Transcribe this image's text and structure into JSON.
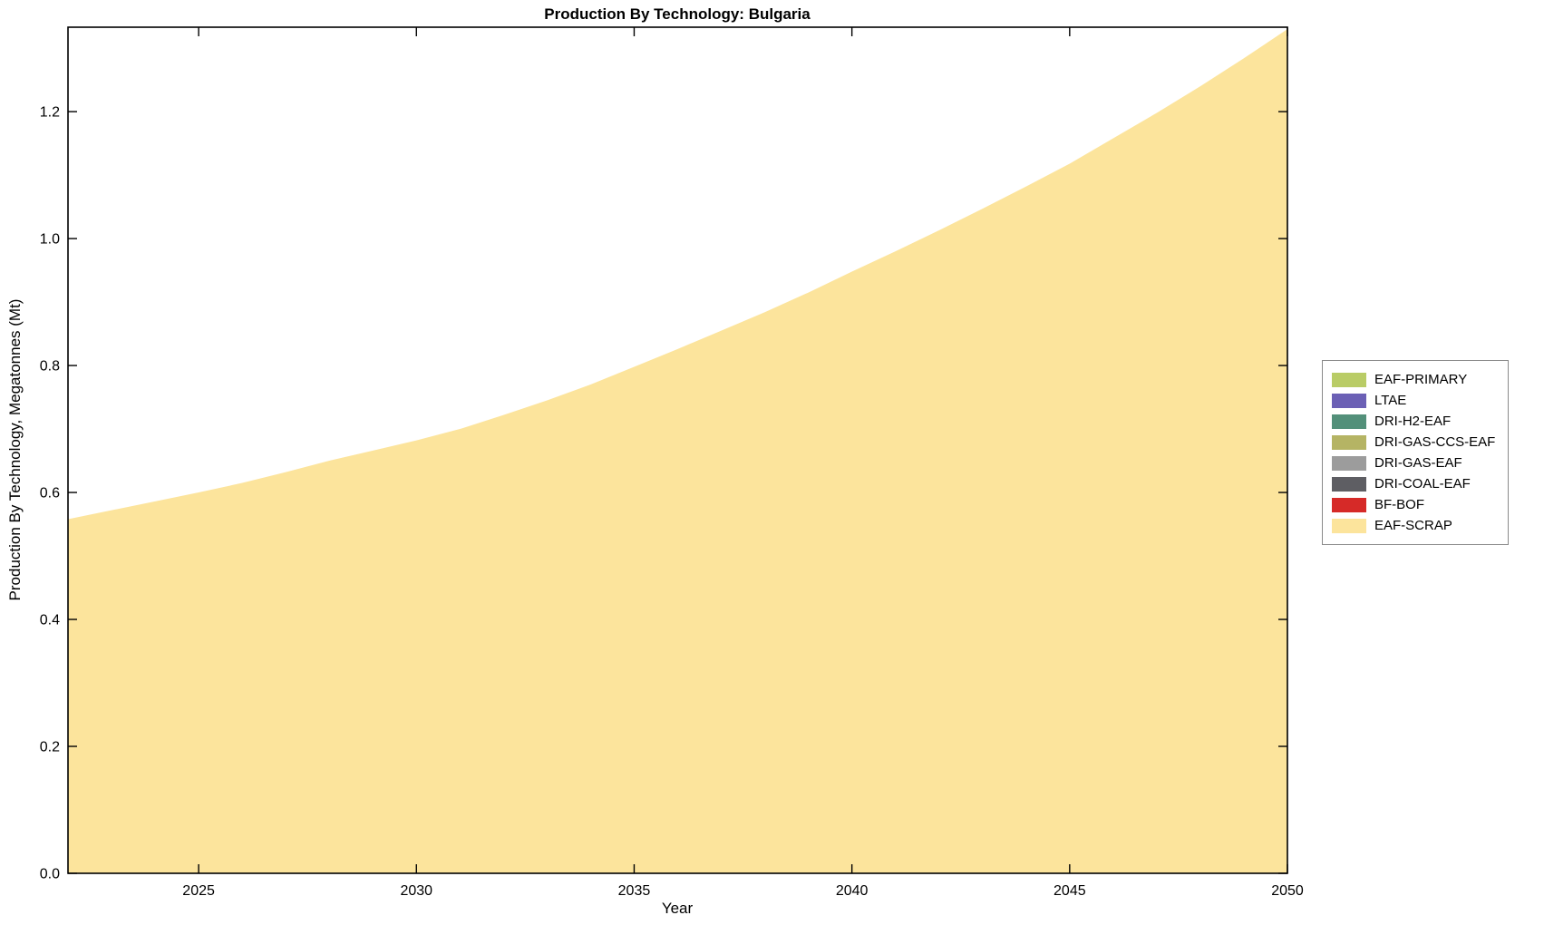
{
  "chart_data": {
    "type": "area",
    "stacked": true,
    "title": "Production By Technology: Bulgaria",
    "xlabel": "Year",
    "ylabel": "Production By Technology, Megatonnes (Mt)",
    "xlim": [
      2022,
      2050
    ],
    "ylim": [
      0,
      1.333
    ],
    "xticks": [
      2025,
      2030,
      2035,
      2040,
      2045,
      2050
    ],
    "yticks": [
      0.0,
      0.2,
      0.4,
      0.6,
      0.8,
      1.0,
      1.2
    ],
    "ytick_labels": [
      "0.0",
      "0.2",
      "0.4",
      "0.6",
      "0.8",
      "1.0",
      "1.2"
    ],
    "grid": false,
    "legend_position": "right-outside",
    "x": [
      2022,
      2023,
      2024,
      2025,
      2026,
      2027,
      2028,
      2029,
      2030,
      2031,
      2032,
      2033,
      2034,
      2035,
      2036,
      2037,
      2038,
      2039,
      2040,
      2041,
      2042,
      2043,
      2044,
      2045,
      2046,
      2047,
      2048,
      2049,
      2050
    ],
    "series": [
      {
        "name": "EAF-SCRAP",
        "color": "#fce49c",
        "values": [
          0.558,
          0.572,
          0.586,
          0.6,
          0.615,
          0.632,
          0.65,
          0.666,
          0.682,
          0.7,
          0.722,
          0.745,
          0.77,
          0.798,
          0.826,
          0.855,
          0.884,
          0.915,
          0.948,
          0.98,
          1.013,
          1.047,
          1.082,
          1.118,
          1.158,
          1.198,
          1.24,
          1.284,
          1.33
        ]
      }
    ],
    "legend": [
      {
        "label": "EAF-PRIMARY",
        "color": "#b9cc66"
      },
      {
        "label": "LTAE",
        "color": "#6b60b5"
      },
      {
        "label": "DRI-H2-EAF",
        "color": "#53907a"
      },
      {
        "label": "DRI-GAS-CCS-EAF",
        "color": "#b5b464"
      },
      {
        "label": "DRI-GAS-EAF",
        "color": "#9c9c9c"
      },
      {
        "label": "DRI-COAL-EAF",
        "color": "#5e5e63"
      },
      {
        "label": "BF-BOF",
        "color": "#d62a28"
      },
      {
        "label": "EAF-SCRAP",
        "color": "#fce49c"
      }
    ],
    "axis_color": "#000000",
    "background_color": "#ffffff"
  }
}
